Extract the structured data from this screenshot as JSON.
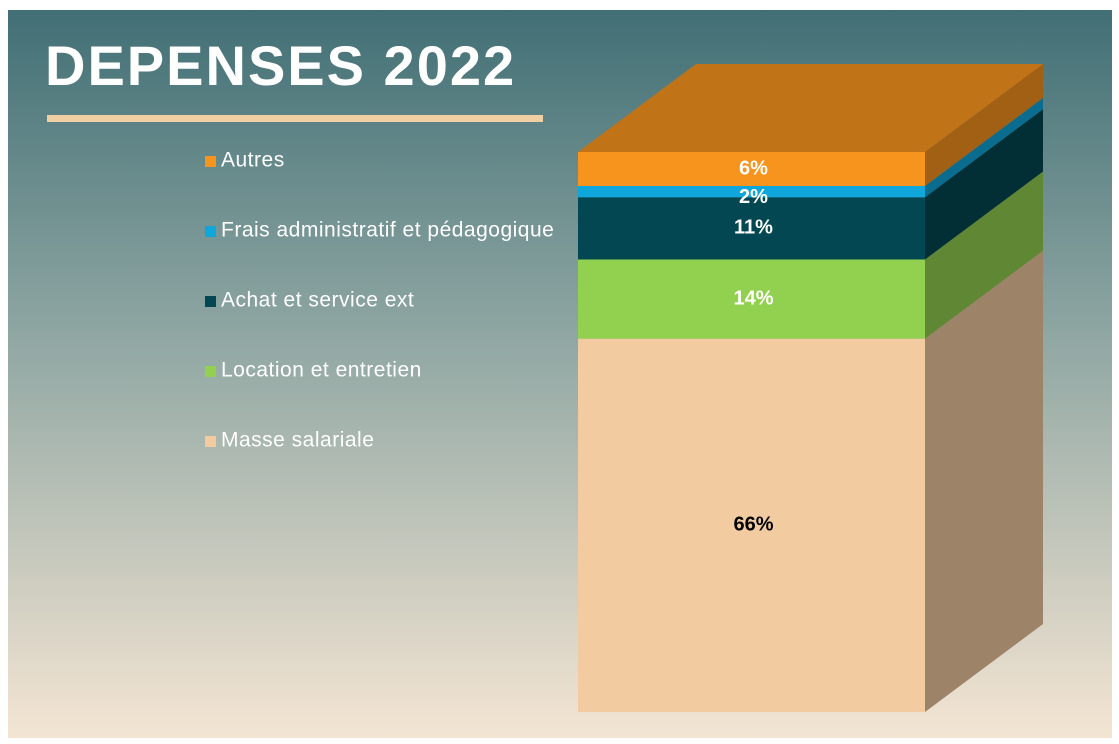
{
  "chart_data": {
    "type": "stacked-bar-3d",
    "title": "DEPENSES 2022",
    "series": [
      {
        "name": "Masse salariale",
        "color": "#f2cba0",
        "label_color": "#000000",
        "values": [
          66
        ],
        "value_labels": [
          "66%"
        ]
      },
      {
        "name": "Location et entretien",
        "color": "#92d050",
        "label_color": "#ffffff",
        "values": [
          14
        ],
        "value_labels": [
          "14%"
        ]
      },
      {
        "name": "Achat et service ext",
        "color": "#034752",
        "label_color": "#ffffff",
        "values": [
          11
        ],
        "value_labels": [
          "11%"
        ]
      },
      {
        "name": "Frais administratif et pédagogique",
        "color": "#0fa6dc",
        "label_color": "#ffffff",
        "values": [
          2
        ],
        "value_labels": [
          "2%"
        ]
      },
      {
        "name": "Autres",
        "color": "#f7941d",
        "label_color": "#ffffff",
        "values": [
          6
        ],
        "value_labels": [
          "6%"
        ]
      }
    ]
  }
}
